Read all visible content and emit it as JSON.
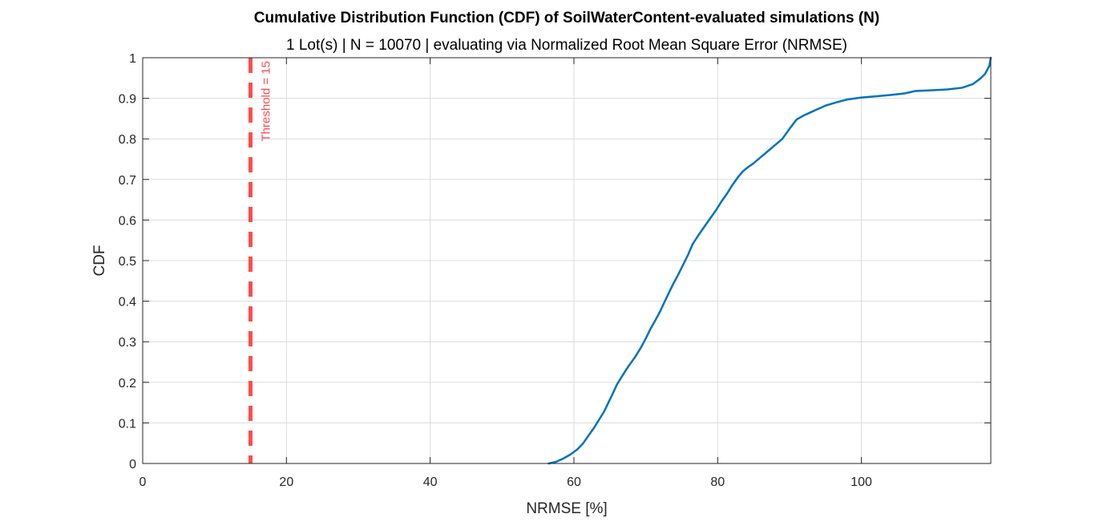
{
  "chart_data": {
    "type": "line",
    "title": "Cumulative Distribution Function (CDF) of SoilWaterContent-evaluated simulations (N)",
    "subtitle": "1 Lot(s) | N = 10070 | evaluating via Normalized Root Mean Square Error (NRMSE)",
    "xlabel": "NRMSE [%]",
    "ylabel": "CDF",
    "xlim": [
      0,
      118
    ],
    "ylim": [
      0,
      1
    ],
    "x_ticks": [
      0,
      20,
      40,
      60,
      80,
      100
    ],
    "x_tick_labels": [
      "0",
      "20",
      "40",
      "60",
      "80",
      "100"
    ],
    "y_ticks": [
      0,
      0.1,
      0.2,
      0.3,
      0.4,
      0.5,
      0.6,
      0.7,
      0.8,
      0.9,
      1
    ],
    "y_tick_labels": [
      "0",
      "0.1",
      "0.2",
      "0.3",
      "0.4",
      "0.5",
      "0.6",
      "0.7",
      "0.8",
      "0.9",
      "1"
    ],
    "grid": true,
    "series": [
      {
        "color": "#0072BD",
        "x": [
          56.5,
          57.5,
          58.5,
          59.5,
          60.5,
          61.3,
          62.0,
          62.8,
          63.5,
          64.2,
          64.8,
          65.4,
          66.0,
          66.8,
          67.6,
          68.5,
          69.3,
          70.0,
          70.6,
          71.3,
          72.0,
          72.6,
          73.2,
          73.8,
          74.5,
          75.2,
          75.9,
          76.5,
          77.3,
          78.2,
          79.0,
          79.8,
          80.5,
          81.3,
          82.0,
          82.8,
          83.5,
          84.2,
          85.0,
          86.0,
          87.0,
          88.0,
          89.0,
          90.0,
          91.0,
          92.0,
          93.0,
          94.0,
          95.0,
          96.5,
          98.0,
          100.0,
          102.0,
          104.0,
          106.0,
          107.5,
          110.0,
          112.0,
          114.0,
          115.5,
          116.5,
          117.2,
          117.8,
          118.0
        ],
        "y": [
          0.0,
          0.004,
          0.012,
          0.022,
          0.035,
          0.05,
          0.068,
          0.088,
          0.108,
          0.128,
          0.15,
          0.172,
          0.195,
          0.218,
          0.24,
          0.262,
          0.285,
          0.308,
          0.33,
          0.352,
          0.375,
          0.398,
          0.42,
          0.442,
          0.465,
          0.49,
          0.515,
          0.54,
          0.562,
          0.585,
          0.605,
          0.625,
          0.645,
          0.665,
          0.685,
          0.705,
          0.72,
          0.73,
          0.74,
          0.755,
          0.77,
          0.785,
          0.8,
          0.825,
          0.848,
          0.858,
          0.866,
          0.874,
          0.882,
          0.89,
          0.897,
          0.902,
          0.905,
          0.908,
          0.912,
          0.918,
          0.92,
          0.922,
          0.926,
          0.935,
          0.948,
          0.96,
          0.98,
          1.0
        ]
      }
    ],
    "threshold": {
      "x": 15,
      "label": "Threshold = 15",
      "color": "#FF4D4D"
    },
    "colors": {
      "grid": "#DCDCDC",
      "axis": "#262626",
      "series": "#0072BD",
      "threshold": "#FF4D4D"
    }
  }
}
